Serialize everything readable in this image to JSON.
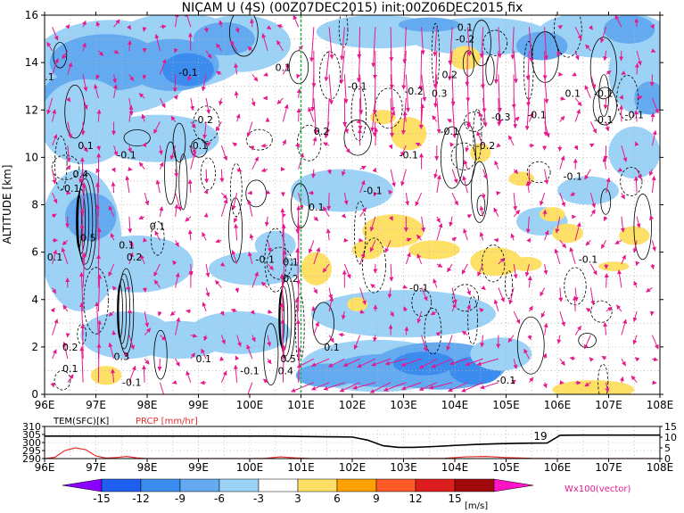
{
  "chart_data": [
    {
      "type": "heatmap",
      "title": "NICAM U (4S) (00Z07DEC2015) init:00Z06DEC2015 fix",
      "xlabel": "",
      "ylabel": "ALTITUDE [km]",
      "x_ticks": [
        "96E",
        "97E",
        "98E",
        "99E",
        "100E",
        "101E",
        "102E",
        "103E",
        "104E",
        "105E",
        "106E",
        "107E",
        "108E"
      ],
      "xlim": [
        96,
        108
      ],
      "y_ticks": [
        "0",
        "2",
        "4",
        "6",
        "8",
        "10",
        "12",
        "14",
        "16"
      ],
      "ylim": [
        0,
        16
      ],
      "grid": true,
      "reference_line_lon": 101,
      "contour_labels": [
        {
          "text": "0.1",
          "lon": 100.65,
          "alt": 13.8
        },
        {
          "text": "-0.1",
          "lon": 98.8,
          "alt": 13.6
        },
        {
          "text": "-0.2",
          "lon": 99.1,
          "alt": 11.6
        },
        {
          "text": "-0.1",
          "lon": 99.0,
          "alt": 10.5
        },
        {
          "text": "-0.1",
          "lon": 96.0,
          "alt": 13.4
        },
        {
          "text": "-0.1",
          "lon": 97.6,
          "alt": 10.1
        },
        {
          "text": "0.1",
          "lon": 96.8,
          "alt": 10.5
        },
        {
          "text": "0.4",
          "lon": 96.7,
          "alt": 9.3
        },
        {
          "text": "-0.1",
          "lon": 96.5,
          "alt": 8.7
        },
        {
          "text": "-0.2",
          "lon": 104.2,
          "alt": 15.0
        },
        {
          "text": "0.1",
          "lon": 104.2,
          "alt": 15.5
        },
        {
          "text": "-0.2",
          "lon": 103.2,
          "alt": 12.8
        },
        {
          "text": "0.2",
          "lon": 103.9,
          "alt": 13.5
        },
        {
          "text": "0.3",
          "lon": 103.7,
          "alt": 12.7
        },
        {
          "text": "-0.1",
          "lon": 102.1,
          "alt": 13.0
        },
        {
          "text": "0.2",
          "lon": 101.4,
          "alt": 11.1
        },
        {
          "text": "-0.1",
          "lon": 103.9,
          "alt": 11.1
        },
        {
          "text": "-0.3",
          "lon": 104.9,
          "alt": 11.7
        },
        {
          "text": "-0.1",
          "lon": 105.6,
          "alt": 11.8
        },
        {
          "text": "0.1",
          "lon": 106.3,
          "alt": 12.7
        },
        {
          "text": "-0.1",
          "lon": 106.9,
          "alt": 12.7
        },
        {
          "text": "-0.1",
          "lon": 106.9,
          "alt": 11.6
        },
        {
          "text": "-0.1",
          "lon": 107.5,
          "alt": 11.8
        },
        {
          "text": "-0.2",
          "lon": 104.6,
          "alt": 10.5
        },
        {
          "text": "-0.1",
          "lon": 103.1,
          "alt": 10.1
        },
        {
          "text": "-0.1",
          "lon": 106.3,
          "alt": 9.2
        },
        {
          "text": "-0.1",
          "lon": 102.4,
          "alt": 8.6
        },
        {
          "text": "0.1",
          "lon": 101.3,
          "alt": 7.9
        },
        {
          "text": "-0.1",
          "lon": 100.3,
          "alt": 5.7
        },
        {
          "text": "0.1",
          "lon": 100.8,
          "alt": 5.6
        },
        {
          "text": "0.2",
          "lon": 100.8,
          "alt": 4.9
        },
        {
          "text": "-0.1",
          "lon": 103.3,
          "alt": 4.5
        },
        {
          "text": "-0.1",
          "lon": 106.6,
          "alt": 5.7
        },
        {
          "text": "0.1",
          "lon": 101.6,
          "alt": 2.0
        },
        {
          "text": "-0.1",
          "lon": 105.0,
          "alt": 0.6
        },
        {
          "text": "-0.1",
          "lon": 100.0,
          "alt": 1.0
        },
        {
          "text": "0.5",
          "lon": 100.75,
          "alt": 1.5
        },
        {
          "text": "0.4",
          "lon": 100.7,
          "alt": 1.0
        },
        {
          "text": "0.1",
          "lon": 99.1,
          "alt": 1.5
        },
        {
          "text": "-0.1",
          "lon": 97.7,
          "alt": 0.5
        },
        {
          "text": "0.3",
          "lon": 97.5,
          "alt": 1.6
        },
        {
          "text": "0.1",
          "lon": 96.5,
          "alt": 1.1
        },
        {
          "text": "0.2",
          "lon": 96.5,
          "alt": 2.0
        },
        {
          "text": "0.5",
          "lon": 96.85,
          "alt": 6.6
        },
        {
          "text": "0.1",
          "lon": 97.6,
          "alt": 6.3
        },
        {
          "text": "0.2",
          "lon": 97.75,
          "alt": 5.8
        },
        {
          "text": "0.1",
          "lon": 98.2,
          "alt": 7.1
        },
        {
          "text": "0.1",
          "lon": 96.2,
          "alt": 5.8
        }
      ],
      "vector_field_note": "wind vectors (U, Wx100)"
    },
    {
      "type": "line",
      "x_ticks": [
        "96E",
        "97E",
        "98E",
        "99E",
        "100E",
        "101E",
        "102E",
        "103E",
        "104E",
        "105E",
        "106E",
        "107E",
        "108E"
      ],
      "xlim": [
        96,
        108
      ],
      "y_left_label": "TEM(SFC)[K]",
      "y_left_ticks": [
        "310",
        "305",
        "300",
        "295",
        "290"
      ],
      "y_left_lim": [
        290,
        310
      ],
      "y_right_label": "PRCP [mm/hr]",
      "y_right_ticks": [
        "15",
        "10",
        "5",
        "0"
      ],
      "y_right_lim": [
        0,
        15
      ],
      "series": [
        {
          "name": "TEM(SFC)[K]",
          "color": "#000000",
          "axis": "left",
          "x": [
            96,
            97,
            98,
            99,
            100,
            100.5,
            101,
            101.5,
            102,
            102.3,
            102.6,
            102.9,
            103.2,
            103.6,
            104,
            104.4,
            104.8,
            105.2,
            105.5,
            105.8,
            105.95,
            106.05,
            106.5,
            107,
            107.5,
            108
          ],
          "y": [
            304,
            304,
            304,
            304,
            304,
            304,
            303.8,
            303.6,
            303.4,
            301.5,
            298,
            297,
            297,
            297.5,
            298.2,
            298.8,
            299.2,
            299.5,
            299.6,
            299.7,
            302.5,
            304.5,
            304.6,
            304.6,
            304.6,
            304.6
          ]
        },
        {
          "name": "PRCP [mm/hr]",
          "color": "#e8302e",
          "axis": "right",
          "x": [
            96,
            96.2,
            96.4,
            96.6,
            96.8,
            97.0,
            97.2,
            97.4,
            97.6,
            97.8,
            98.0,
            98.5,
            99,
            99.5,
            100,
            100.3,
            100.6,
            100.9,
            101.2,
            102,
            103,
            103.8,
            104.2,
            104.6,
            105.0,
            105.5,
            106,
            107,
            108
          ],
          "y": [
            0,
            0.6,
            3.8,
            5.0,
            4.2,
            1.2,
            0.2,
            0.5,
            1.0,
            0.3,
            0,
            0,
            0,
            0,
            0,
            0.1,
            0.8,
            0.3,
            0,
            0,
            0,
            0.1,
            0.8,
            1.0,
            0.5,
            0.1,
            0,
            0,
            0
          ]
        }
      ],
      "annotation": {
        "text": "19",
        "lon": 105.85
      }
    }
  ],
  "colorbar": {
    "labels": [
      "-15",
      "-12",
      "-9",
      "-6",
      "-3",
      "3",
      "6",
      "9",
      "12",
      "15"
    ],
    "unit": "[m/s]",
    "vector_note": "Wx100(vector)",
    "colors": [
      "#8a00ff",
      "#1e5ff0",
      "#3c8cf0",
      "#64aaf0",
      "#9cd2f5",
      "#ffffff",
      "#ffe066",
      "#ffa000",
      "#ff5a28",
      "#dc1e1e",
      "#a00a0a",
      "#ff14c8"
    ]
  }
}
